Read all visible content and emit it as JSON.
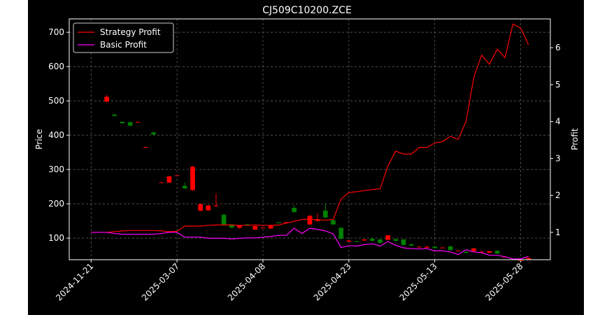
{
  "chart_data": {
    "type": "candlestick",
    "title": "CJ509C10200.ZCE",
    "ylabel": "Price",
    "y2label": "Profit",
    "categories": [
      "2024-11-21",
      null,
      null,
      null,
      null,
      null,
      null,
      null,
      null,
      null,
      null,
      "2025-03-07",
      null,
      null,
      null,
      null,
      null,
      null,
      null,
      null,
      null,
      null,
      "2025-04-08",
      null,
      null,
      null,
      null,
      null,
      null,
      null,
      null,
      null,
      null,
      "2025-04-23",
      null,
      null,
      null,
      null,
      null,
      null,
      null,
      null,
      null,
      null,
      "2025-05-13",
      null,
      null,
      null,
      null,
      null,
      null,
      null,
      null,
      null,
      null,
      "2025-05-28",
      null
    ],
    "xlim": [
      -2.8,
      58.8
    ],
    "ylim": [
      37,
      739
    ],
    "yticks": [
      100,
      200,
      300,
      400,
      500,
      600,
      700
    ],
    "y2lim": [
      0.26,
      6.78
    ],
    "y2ticks": [
      1,
      2,
      3,
      4,
      5,
      6
    ],
    "grid": true,
    "legend": "upper left",
    "up_color": "#ff0000",
    "down_color": "#008000",
    "ohlc": {
      "open": [
        null,
        null,
        498,
        460,
        439,
        438,
        438,
        365,
        408,
        262,
        262,
        282,
        252,
        240,
        180,
        181,
        193,
        168,
        140,
        130,
        140,
        125,
        130,
        128,
        146,
        146,
        188,
        null,
        140,
        150,
        180,
        152,
        130,
        90,
        91,
        93,
        98,
        96,
        95,
        97,
        96,
        82,
        73,
        72,
        75,
        72,
        76,
        63,
        60,
        62,
        58,
        57,
        63,
        45,
        38,
        35,
        37
      ],
      "high": [
        null,
        null,
        517,
        461,
        440,
        439,
        439,
        366,
        409,
        263,
        281,
        284,
        262,
        310,
        200,
        196,
        230,
        170,
        141,
        138,
        141,
        136,
        131,
        139,
        147,
        147,
        196,
        null,
        167,
        172,
        200,
        154,
        131,
        94,
        92,
        97,
        100,
        97,
        109,
        98,
        97,
        83,
        76,
        76,
        76,
        73,
        77,
        64,
        61,
        71,
        64,
        63,
        64,
        46,
        39,
        36,
        43
      ],
      "low": [
        null,
        null,
        495,
        455,
        434,
        426,
        437,
        364,
        401,
        261,
        261,
        281,
        243,
        238,
        178,
        180,
        191,
        138,
        128,
        128,
        139,
        124,
        129,
        127,
        145,
        145,
        174,
        null,
        138,
        148,
        158,
        138,
        96,
        89,
        88,
        92,
        90,
        84,
        93,
        91,
        79,
        77,
        72,
        71,
        70,
        71,
        64,
        62,
        56,
        61,
        57,
        56,
        54,
        44,
        37,
        34,
        36
      ],
      "close": [
        null,
        null,
        512,
        456,
        435,
        428,
        438.5,
        365.5,
        402,
        262.5,
        280,
        283,
        245,
        308,
        199,
        195,
        195,
        140,
        131,
        137,
        139.5,
        135,
        130.5,
        138,
        145.5,
        146.5,
        176,
        null,
        165,
        155,
        160,
        140,
        98,
        93,
        90,
        96,
        92,
        86,
        108,
        92,
        80,
        78,
        75,
        75,
        71,
        72.5,
        65,
        63.5,
        57,
        70,
        60,
        62,
        55,
        45.5,
        38.5,
        35.5,
        42
      ]
    },
    "series": [
      {
        "name": "Strategy Profit",
        "color": "#ff0000",
        "axis": "y2",
        "values": [
          1.0,
          1.0,
          1.0,
          1.02,
          1.04,
          1.05,
          1.05,
          1.05,
          1.05,
          1.04,
          1.02,
          1.03,
          1.17,
          1.17,
          1.17,
          1.19,
          1.2,
          1.2,
          1.2,
          1.19,
          1.19,
          1.2,
          1.19,
          1.19,
          1.2,
          1.25,
          1.3,
          1.35,
          1.36,
          1.34,
          1.33,
          1.35,
          1.9,
          2.08,
          2.1,
          2.13,
          2.16,
          2.18,
          2.8,
          3.2,
          3.12,
          3.12,
          3.3,
          3.3,
          3.42,
          3.46,
          3.6,
          3.52,
          4.0,
          5.2,
          5.8,
          5.55,
          5.96,
          5.73,
          6.64,
          6.53,
          6.08
        ]
      },
      {
        "name": "Basic Profit",
        "color": "#ff00ff",
        "axis": "y2",
        "values": [
          1.0,
          1.0,
          1.0,
          0.97,
          0.95,
          0.95,
          0.95,
          0.95,
          0.95,
          0.97,
          1.0,
          1.0,
          0.87,
          0.87,
          0.87,
          0.84,
          0.84,
          0.84,
          0.82,
          0.84,
          0.85,
          0.85,
          0.87,
          0.89,
          0.92,
          0.92,
          1.11,
          0.97,
          1.11,
          1.08,
          1.04,
          0.96,
          0.59,
          0.64,
          0.63,
          0.67,
          0.69,
          0.63,
          0.75,
          0.65,
          0.58,
          0.56,
          0.55,
          0.56,
          0.5,
          0.5,
          0.47,
          0.4,
          0.53,
          0.47,
          0.45,
          0.38,
          0.38,
          0.34,
          0.28,
          0.28,
          0.35
        ]
      }
    ]
  }
}
